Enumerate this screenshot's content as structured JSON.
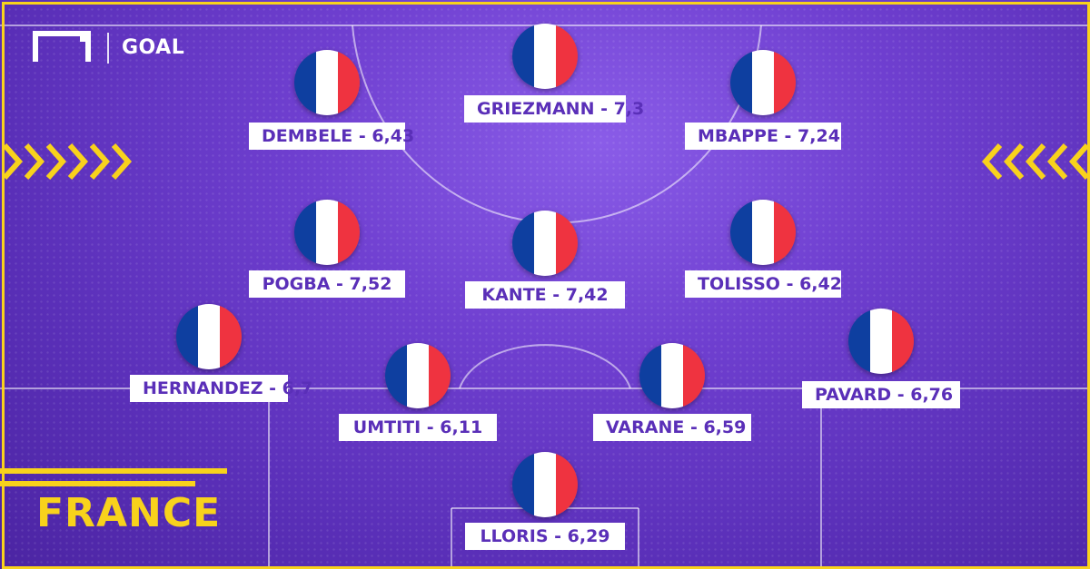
{
  "brand": {
    "logo_text": "GOAL"
  },
  "team": {
    "name": "FRANCE"
  },
  "colors": {
    "accent": "#f8d21c",
    "background": "#6f3fd0",
    "label_text": "#5a2fb8",
    "flag_blue": "#0e3fa0",
    "flag_white": "#ffffff",
    "flag_red": "#ef3340"
  },
  "players": [
    {
      "id": "griezmann",
      "label": "GRIEZMANN - 7,3",
      "flag": "france-flag-icon"
    },
    {
      "id": "dembele",
      "label": "DEMBELE - 6,43",
      "flag": "france-flag-icon"
    },
    {
      "id": "mbappe",
      "label": "MBAPPE - 7,24",
      "flag": "france-flag-icon"
    },
    {
      "id": "pogba",
      "label": "POGBA - 7,52",
      "flag": "france-flag-icon"
    },
    {
      "id": "kante",
      "label": "KANTE - 7,42",
      "flag": "france-flag-icon"
    },
    {
      "id": "tolisso",
      "label": "TOLISSO - 6,42",
      "flag": "france-flag-icon"
    },
    {
      "id": "hernandez",
      "label": "HERNANDEZ - 6,7",
      "flag": "france-flag-icon"
    },
    {
      "id": "umtiti",
      "label": "UMTITI - 6,11",
      "flag": "france-flag-icon"
    },
    {
      "id": "varane",
      "label": "VARANE - 6,59",
      "flag": "france-flag-icon"
    },
    {
      "id": "pavard",
      "label": "PAVARD - 6,76",
      "flag": "france-flag-icon"
    },
    {
      "id": "lloris",
      "label": "LLORIS - 6,29",
      "flag": "france-flag-icon"
    }
  ]
}
